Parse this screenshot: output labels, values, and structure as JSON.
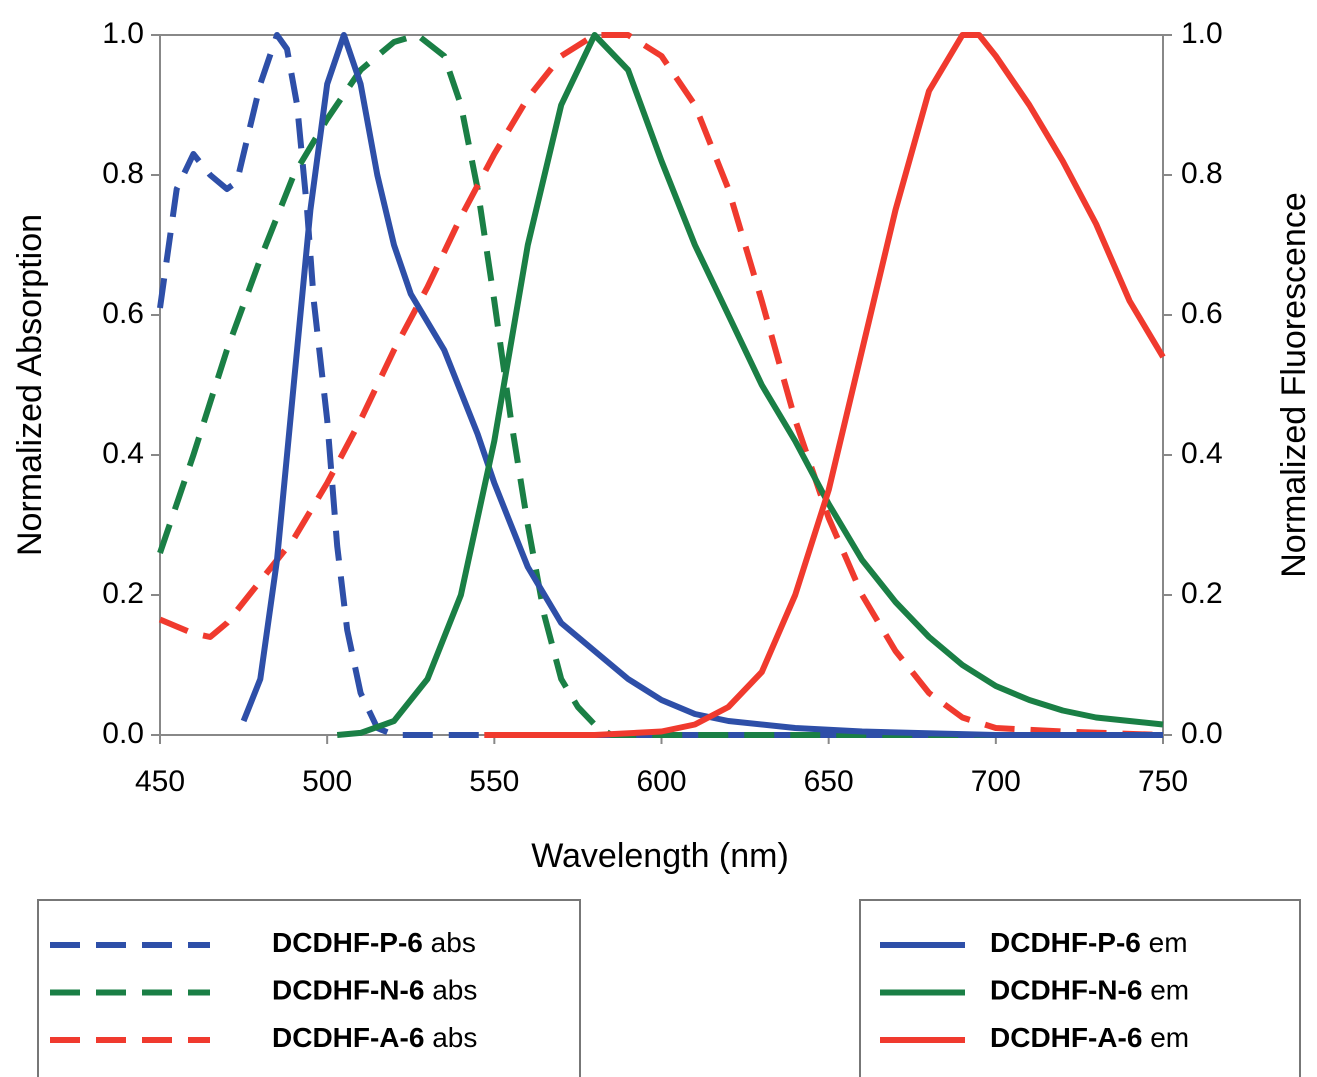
{
  "chart_data": {
    "type": "line",
    "xlabel": "Wavelength (nm)",
    "ylabel": "Normalized Absorption",
    "y2label": "Normalized Fluorescence",
    "xlim": [
      450,
      750
    ],
    "xticks": [
      450,
      500,
      550,
      600,
      650,
      700,
      750
    ],
    "ylim": [
      0,
      1
    ],
    "yticks": [
      {
        "value": 0,
        "label": "0.0"
      },
      0.2,
      0.4,
      0.6,
      0.8,
      {
        "value": 1,
        "label": "1.0"
      }
    ],
    "y2lim": [
      0,
      1
    ],
    "y2ticks": [
      {
        "value": 0,
        "label": "0.0"
      },
      0.2,
      0.4,
      0.6,
      0.8,
      {
        "value": 1,
        "label": "1.0"
      }
    ],
    "series": [
      {
        "name": "DCDHF-P-6 abs",
        "color": "#2e4fa8",
        "style": "dashed",
        "x": [
          450,
          455,
          460,
          465,
          470,
          473,
          476,
          480,
          485,
          488,
          491,
          494,
          496,
          500,
          503,
          506,
          510,
          515,
          520,
          550,
          600,
          650,
          700,
          750
        ],
        "values": [
          0.61,
          0.78,
          0.83,
          0.8,
          0.78,
          0.79,
          0.85,
          0.93,
          1.0,
          0.98,
          0.9,
          0.75,
          0.62,
          0.45,
          0.27,
          0.15,
          0.06,
          0.01,
          0.0,
          0.0,
          0.0,
          0.0,
          0.0,
          0.0
        ]
      },
      {
        "name": "DCDHF-N-6 abs",
        "color": "#1a7f45",
        "style": "dashed",
        "x": [
          450,
          460,
          470,
          480,
          490,
          500,
          510,
          520,
          527,
          535,
          540,
          545,
          550,
          555,
          560,
          565,
          570,
          575,
          580,
          585,
          600,
          650,
          700,
          750
        ],
        "values": [
          0.26,
          0.4,
          0.55,
          0.68,
          0.8,
          0.88,
          0.95,
          0.99,
          1.0,
          0.97,
          0.9,
          0.78,
          0.62,
          0.45,
          0.3,
          0.17,
          0.08,
          0.04,
          0.015,
          0.0,
          0.0,
          0.0,
          0.0,
          0.0
        ]
      },
      {
        "name": "DCDHF-A-6 abs",
        "color": "#f03a2e",
        "style": "dashed",
        "x": [
          450,
          460,
          465,
          470,
          480,
          490,
          500,
          510,
          520,
          530,
          540,
          550,
          560,
          570,
          580,
          590,
          600,
          610,
          620,
          630,
          640,
          650,
          660,
          670,
          680,
          690,
          700,
          720,
          750
        ],
        "values": [
          0.165,
          0.145,
          0.14,
          0.16,
          0.22,
          0.28,
          0.36,
          0.45,
          0.55,
          0.64,
          0.74,
          0.83,
          0.91,
          0.97,
          1.0,
          1.0,
          0.97,
          0.9,
          0.78,
          0.62,
          0.45,
          0.31,
          0.2,
          0.12,
          0.06,
          0.025,
          0.01,
          0.005,
          0.0
        ]
      },
      {
        "name": "DCDHF-P-6 em",
        "color": "#2e4fa8",
        "style": "solid",
        "axis": "y2",
        "x": [
          475,
          480,
          485,
          490,
          495,
          500,
          505,
          510,
          515,
          520,
          525,
          530,
          535,
          540,
          545,
          550,
          555,
          560,
          565,
          570,
          580,
          590,
          600,
          610,
          620,
          640,
          660,
          700,
          750
        ],
        "values": [
          0.02,
          0.08,
          0.25,
          0.5,
          0.75,
          0.93,
          1.0,
          0.93,
          0.8,
          0.7,
          0.63,
          0.59,
          0.55,
          0.49,
          0.43,
          0.36,
          0.3,
          0.24,
          0.2,
          0.16,
          0.12,
          0.08,
          0.05,
          0.03,
          0.02,
          0.01,
          0.005,
          0.0,
          0.0
        ]
      },
      {
        "name": "DCDHF-N-6 em",
        "color": "#1a7f45",
        "style": "solid",
        "axis": "y2",
        "x": [
          503,
          510,
          520,
          530,
          540,
          550,
          560,
          570,
          580,
          590,
          600,
          610,
          620,
          630,
          640,
          650,
          660,
          670,
          680,
          690,
          700,
          710,
          720,
          730,
          740,
          750
        ],
        "values": [
          0.0,
          0.003,
          0.02,
          0.08,
          0.2,
          0.42,
          0.7,
          0.9,
          1.0,
          0.95,
          0.82,
          0.7,
          0.6,
          0.5,
          0.42,
          0.33,
          0.25,
          0.19,
          0.14,
          0.1,
          0.07,
          0.05,
          0.035,
          0.025,
          0.02,
          0.015
        ]
      },
      {
        "name": "DCDHF-A-6 em",
        "color": "#f03a2e",
        "style": "solid",
        "axis": "y2",
        "x": [
          547,
          580,
          600,
          610,
          620,
          630,
          640,
          650,
          660,
          670,
          680,
          690,
          695,
          700,
          710,
          720,
          730,
          740,
          750
        ],
        "values": [
          0.0,
          0.0,
          0.005,
          0.015,
          0.04,
          0.09,
          0.2,
          0.35,
          0.55,
          0.75,
          0.92,
          1.0,
          1.0,
          0.97,
          0.9,
          0.82,
          0.73,
          0.62,
          0.54
        ]
      }
    ]
  }
}
